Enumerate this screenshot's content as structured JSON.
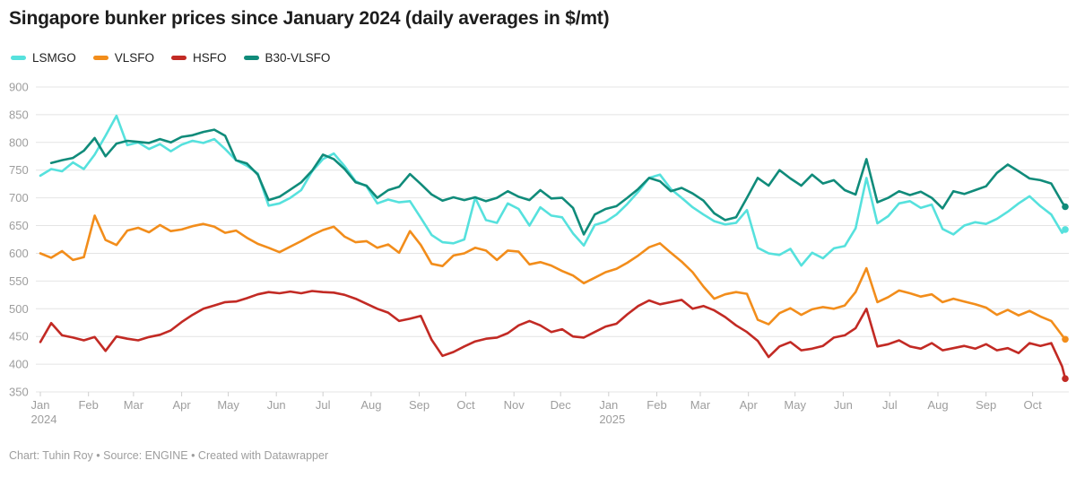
{
  "header": {
    "title": "Singapore bunker prices since January 2024 (daily averages in $/mt)"
  },
  "footer": {
    "text": "Chart: Tuhin Roy • Source: ENGINE • Created with Datawrapper"
  },
  "colors": {
    "lsmgo": "#56e1dd",
    "vlsfo": "#f28d1b",
    "hsfo": "#c22a24",
    "b30_vlsfo": "#108b7a",
    "grid": "#e4e4e4",
    "tick": "#cfcfcf",
    "axis_text": "#9d9d9d"
  },
  "chart_data": {
    "type": "line",
    "title": "Singapore bunker prices since January 2024 (daily averages in $/mt)",
    "ylabel": "$/mt",
    "ylim": [
      350,
      900
    ],
    "y_ticks": [
      350,
      400,
      450,
      500,
      550,
      600,
      650,
      700,
      750,
      800,
      850,
      900
    ],
    "grid": "horizontal",
    "legend_position": "top-left",
    "x_unit": "days since 2024-01-01",
    "x_domain": [
      0,
      660
    ],
    "x_months": [
      {
        "label": "Jan",
        "sub": "2024",
        "day": 0
      },
      {
        "label": "Feb",
        "day": 31
      },
      {
        "label": "Mar",
        "day": 60
      },
      {
        "label": "Apr",
        "day": 91
      },
      {
        "label": "May",
        "day": 121
      },
      {
        "label": "Jun",
        "day": 152
      },
      {
        "label": "Jul",
        "day": 182
      },
      {
        "label": "Aug",
        "day": 213
      },
      {
        "label": "Sep",
        "day": 244
      },
      {
        "label": "Oct",
        "day": 274
      },
      {
        "label": "Nov",
        "day": 305
      },
      {
        "label": "Dec",
        "day": 335
      },
      {
        "label": "Jan",
        "sub": "2025",
        "day": 366
      },
      {
        "label": "Feb",
        "day": 397
      },
      {
        "label": "Mar",
        "day": 425
      },
      {
        "label": "Apr",
        "day": 456
      },
      {
        "label": "May",
        "day": 486
      },
      {
        "label": "Jun",
        "day": 517
      },
      {
        "label": "Jul",
        "day": 547
      },
      {
        "label": "Aug",
        "day": 578
      },
      {
        "label": "Sep",
        "day": 609
      },
      {
        "label": "Oct",
        "day": 639
      }
    ],
    "sample_days": [
      0,
      7,
      14,
      21,
      28,
      35,
      42,
      49,
      56,
      63,
      70,
      77,
      84,
      91,
      98,
      105,
      112,
      119,
      126,
      133,
      140,
      147,
      154,
      161,
      168,
      175,
      182,
      189,
      196,
      203,
      210,
      217,
      224,
      231,
      238,
      245,
      252,
      259,
      266,
      273,
      280,
      287,
      294,
      301,
      308,
      315,
      322,
      329,
      336,
      343,
      350,
      357,
      364,
      371,
      378,
      385,
      392,
      399,
      406,
      413,
      420,
      427,
      434,
      441,
      448,
      455,
      462,
      469,
      476,
      483,
      490,
      497,
      504,
      511,
      518,
      525,
      532,
      539,
      546,
      553,
      560,
      567,
      574,
      581,
      588,
      595,
      602,
      609,
      616,
      623,
      630,
      637,
      644,
      651,
      658,
      660
    ],
    "series": [
      {
        "name": "LSMGO",
        "color": "#56e1dd",
        "end_value": 643,
        "values": [
          740,
          752,
          748,
          764,
          752,
          778,
          812,
          848,
          795,
          800,
          788,
          797,
          784,
          796,
          803,
          799,
          806,
          788,
          768,
          758,
          744,
          686,
          690,
          700,
          714,
          748,
          770,
          780,
          757,
          730,
          721,
          690,
          697,
          692,
          694,
          664,
          633,
          620,
          618,
          625,
          700,
          660,
          655,
          690,
          680,
          650,
          683,
          668,
          665,
          636,
          614,
          651,
          657,
          670,
          689,
          711,
          736,
          742,
          716,
          700,
          683,
          670,
          658,
          652,
          655,
          678,
          610,
          600,
          597,
          608,
          578,
          601,
          591,
          609,
          613,
          645,
          736,
          654,
          667,
          690,
          694,
          682,
          688,
          644,
          634,
          650,
          656,
          653,
          662,
          675,
          690,
          703,
          685,
          670,
          637,
          643
        ]
      },
      {
        "name": "VLSFO",
        "color": "#f28d1b",
        "end_value": 445,
        "values": [
          600,
          592,
          604,
          588,
          593,
          668,
          624,
          615,
          641,
          646,
          638,
          651,
          640,
          643,
          649,
          653,
          648,
          637,
          641,
          628,
          617,
          610,
          602,
          612,
          622,
          633,
          642,
          648,
          630,
          620,
          622,
          610,
          616,
          601,
          640,
          615,
          581,
          577,
          596,
          600,
          610,
          605,
          588,
          605,
          603,
          580,
          584,
          578,
          568,
          560,
          546,
          556,
          566,
          572,
          583,
          596,
          611,
          618,
          601,
          585,
          566,
          540,
          518,
          526,
          530,
          527,
          480,
          472,
          492,
          501,
          489,
          499,
          503,
          500,
          506,
          530,
          573,
          512,
          521,
          533,
          528,
          522,
          526,
          512,
          518,
          513,
          508,
          502,
          489,
          498,
          488,
          496,
          486,
          478,
          452,
          445
        ]
      },
      {
        "name": "HSFO",
        "color": "#c22a24",
        "end_value": 374,
        "values": [
          440,
          474,
          452,
          448,
          443,
          449,
          424,
          450,
          446,
          443,
          449,
          453,
          461,
          476,
          489,
          500,
          506,
          512,
          513,
          519,
          526,
          530,
          528,
          531,
          528,
          532,
          530,
          529,
          525,
          518,
          509,
          500,
          493,
          478,
          482,
          487,
          444,
          415,
          422,
          432,
          441,
          446,
          448,
          456,
          470,
          478,
          470,
          458,
          463,
          450,
          448,
          458,
          468,
          473,
          490,
          505,
          515,
          508,
          512,
          516,
          500,
          505,
          497,
          485,
          470,
          458,
          442,
          413,
          432,
          440,
          425,
          428,
          433,
          448,
          452,
          465,
          500,
          432,
          436,
          443,
          432,
          428,
          438,
          425,
          429,
          433,
          428,
          436,
          425,
          429,
          420,
          438,
          433,
          438,
          396,
          374
        ]
      },
      {
        "name": "B30-VLSFO",
        "color": "#108b7a",
        "end_value": 684,
        "values": [
          null,
          763,
          768,
          772,
          785,
          808,
          775,
          798,
          803,
          801,
          799,
          806,
          800,
          810,
          813,
          819,
          823,
          812,
          768,
          762,
          742,
          696,
          702,
          715,
          728,
          749,
          778,
          770,
          752,
          728,
          722,
          700,
          714,
          720,
          743,
          725,
          706,
          695,
          701,
          696,
          701,
          694,
          700,
          712,
          702,
          696,
          714,
          699,
          700,
          682,
          634,
          670,
          680,
          685,
          700,
          716,
          736,
          730,
          712,
          718,
          708,
          695,
          672,
          660,
          665,
          700,
          736,
          722,
          750,
          735,
          722,
          742,
          726,
          732,
          714,
          706,
          770,
          692,
          700,
          712,
          705,
          711,
          700,
          681,
          712,
          707,
          714,
          721,
          745,
          760,
          748,
          735,
          732,
          726,
          692,
          684
        ]
      }
    ]
  }
}
